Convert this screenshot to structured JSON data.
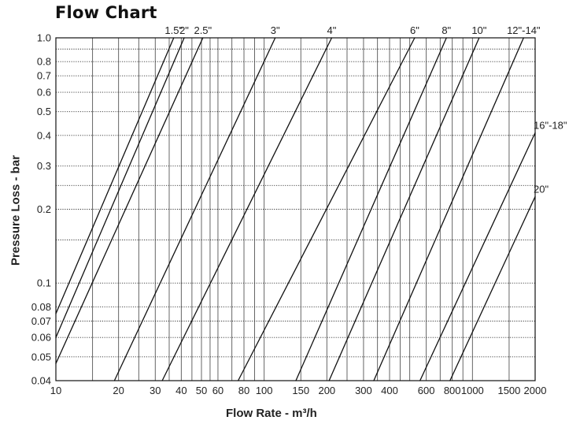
{
  "chart_data": {
    "type": "line",
    "title": "Flow Chart",
    "xlabel": "Flow Rate - m³/h",
    "ylabel": "Pressure Loss - bar",
    "x_scale": "log",
    "y_scale": "log",
    "xlim": [
      10,
      2000
    ],
    "ylim": [
      0.04,
      1.0
    ],
    "grid": true,
    "x_tick_labels": [
      {
        "value": 10,
        "label": "10"
      },
      {
        "value": 20,
        "label": "20"
      },
      {
        "value": 30,
        "label": "30"
      },
      {
        "value": 40,
        "label": "40"
      },
      {
        "value": 50,
        "label": "50"
      },
      {
        "value": 60,
        "label": "60"
      },
      {
        "value": 80,
        "label": "80"
      },
      {
        "value": 100,
        "label": "100"
      },
      {
        "value": 150,
        "label": "150"
      },
      {
        "value": 200,
        "label": "200"
      },
      {
        "value": 300,
        "label": "300"
      },
      {
        "value": 400,
        "label": "400"
      },
      {
        "value": 600,
        "label": "600"
      },
      {
        "value": 800,
        "label": "800"
      },
      {
        "value": 1000,
        "label": "1000"
      },
      {
        "value": 1500,
        "label": "1500"
      },
      {
        "value": 2000,
        "label": "2000"
      }
    ],
    "x_grid": [
      10,
      15,
      20,
      25,
      30,
      35,
      40,
      45,
      50,
      55,
      60,
      70,
      80,
      90,
      100,
      150,
      200,
      250,
      300,
      350,
      400,
      450,
      500,
      600,
      700,
      800,
      900,
      1000,
      1500,
      2000
    ],
    "y_tick_labels": [
      {
        "value": 0.04,
        "label": "0.04"
      },
      {
        "value": 0.05,
        "label": "0.05"
      },
      {
        "value": 0.06,
        "label": "0.06"
      },
      {
        "value": 0.07,
        "label": "0.07"
      },
      {
        "value": 0.08,
        "label": "0.08"
      },
      {
        "value": 0.1,
        "label": "0.1"
      },
      {
        "value": 0.2,
        "label": "0.2"
      },
      {
        "value": 0.3,
        "label": "0.3"
      },
      {
        "value": 0.4,
        "label": "0.4"
      },
      {
        "value": 0.5,
        "label": "0.5"
      },
      {
        "value": 0.6,
        "label": "0.6"
      },
      {
        "value": 0.7,
        "label": "0.7"
      },
      {
        "value": 0.8,
        "label": "0.8"
      },
      {
        "value": 1.0,
        "label": "1.0"
      }
    ],
    "y_grid": [
      0.04,
      0.05,
      0.06,
      0.07,
      0.08,
      0.1,
      0.15,
      0.2,
      0.25,
      0.3,
      0.4,
      0.5,
      0.6,
      0.7,
      0.8,
      0.9,
      1.0
    ],
    "series": [
      {
        "name": "1.5\"",
        "x": [
          10,
          36.8
        ],
        "y": [
          0.075,
          1.0
        ]
      },
      {
        "name": "2\"",
        "x": [
          10,
          41.3
        ],
        "y": [
          0.06,
          1.0
        ]
      },
      {
        "name": "2.5\"",
        "x": [
          10,
          50.8
        ],
        "y": [
          0.047,
          1.0
        ]
      },
      {
        "name": "3\"",
        "x": [
          19.1,
          113
        ],
        "y": [
          0.04,
          1.0
        ]
      },
      {
        "name": "4\"",
        "x": [
          32.4,
          211
        ],
        "y": [
          0.04,
          1.0
        ]
      },
      {
        "name": "6\"",
        "x": [
          75,
          528
        ],
        "y": [
          0.04,
          1.0
        ]
      },
      {
        "name": "8\"",
        "x": [
          142,
          750
        ],
        "y": [
          0.04,
          1.0
        ]
      },
      {
        "name": "10\"",
        "x": [
          205,
          1077
        ],
        "y": [
          0.04,
          1.0
        ]
      },
      {
        "name": "12\"-14\"",
        "x": [
          336,
          1760
        ],
        "y": [
          0.04,
          1.0
        ]
      },
      {
        "name": "16\"-18\"",
        "x": [
          560,
          2000
        ],
        "y": [
          0.04,
          0.41
        ]
      },
      {
        "name": "20\"",
        "x": [
          780,
          2000
        ],
        "y": [
          0.04,
          0.225
        ]
      }
    ]
  }
}
